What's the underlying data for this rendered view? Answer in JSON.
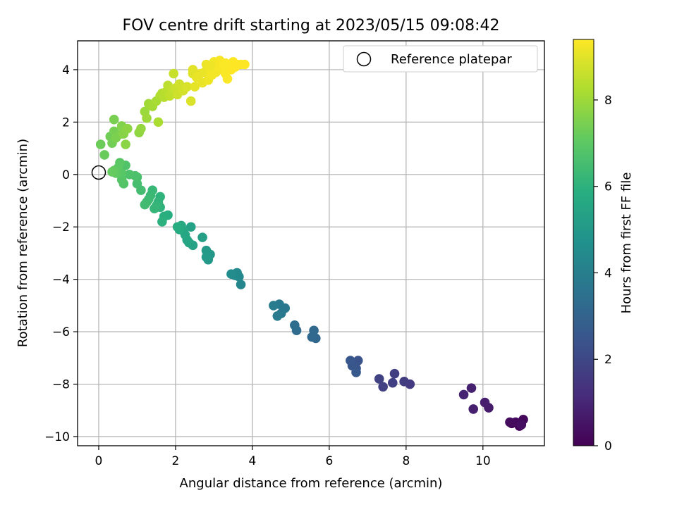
{
  "chart_data": {
    "type": "scatter",
    "title": "FOV centre drift starting at 2023/05/15 09:08:42",
    "xlabel": "Angular distance from reference (arcmin)",
    "ylabel": "Rotation from reference (arcmin)",
    "xlim": [
      -0.55,
      11.6
    ],
    "ylim": [
      -10.35,
      5.1
    ],
    "xticks": [
      0,
      2,
      4,
      6,
      8,
      10
    ],
    "yticks": [
      -10,
      -8,
      -6,
      -4,
      -2,
      0,
      2,
      4
    ],
    "xtick_labels": [
      "0",
      "2",
      "4",
      "6",
      "8",
      "10"
    ],
    "ytick_labels": [
      "−10",
      "−8",
      "−6",
      "−4",
      "−2",
      "0",
      "2",
      "4"
    ],
    "grid": true,
    "legend": {
      "placement": "top-right",
      "entries": [
        {
          "label": "Reference platepar",
          "marker": "open-circle"
        }
      ]
    },
    "reference_point": {
      "x": 0,
      "y": 0
    },
    "colorbar": {
      "label": "Hours from first FF file",
      "colormap": "viridis",
      "range": [
        0,
        9.4
      ],
      "ticks": [
        0,
        2,
        4,
        6,
        8
      ],
      "tick_labels": [
        "0",
        "2",
        "4",
        "6",
        "8"
      ]
    },
    "points": [
      {
        "x": 11.0,
        "y": -9.45,
        "h": 0.0
      },
      {
        "x": 10.95,
        "y": -9.6,
        "h": 0.05
      },
      {
        "x": 10.75,
        "y": -9.5,
        "h": 0.1
      },
      {
        "x": 11.05,
        "y": -9.35,
        "h": 0.15
      },
      {
        "x": 10.9,
        "y": -9.5,
        "h": 0.2
      },
      {
        "x": 10.85,
        "y": -9.45,
        "h": 0.25
      },
      {
        "x": 10.7,
        "y": -9.45,
        "h": 0.3
      },
      {
        "x": 11.0,
        "y": -9.55,
        "h": 0.35
      },
      {
        "x": 10.15,
        "y": -8.9,
        "h": 0.7
      },
      {
        "x": 10.05,
        "y": -8.7,
        "h": 0.75
      },
      {
        "x": 9.75,
        "y": -8.95,
        "h": 0.8
      },
      {
        "x": 9.7,
        "y": -8.15,
        "h": 0.85
      },
      {
        "x": 9.5,
        "y": -8.4,
        "h": 0.9
      },
      {
        "x": 8.1,
        "y": -8.0,
        "h": 1.6
      },
      {
        "x": 7.95,
        "y": -7.9,
        "h": 1.65
      },
      {
        "x": 7.7,
        "y": -7.6,
        "h": 1.7
      },
      {
        "x": 7.65,
        "y": -7.95,
        "h": 1.75
      },
      {
        "x": 7.4,
        "y": -8.1,
        "h": 1.8
      },
      {
        "x": 7.3,
        "y": -7.8,
        "h": 1.85
      },
      {
        "x": 6.75,
        "y": -7.1,
        "h": 2.4
      },
      {
        "x": 6.7,
        "y": -7.4,
        "h": 2.45
      },
      {
        "x": 6.6,
        "y": -7.3,
        "h": 2.5
      },
      {
        "x": 6.55,
        "y": -7.1,
        "h": 2.55
      },
      {
        "x": 6.7,
        "y": -7.55,
        "h": 2.6
      },
      {
        "x": 5.65,
        "y": -6.25,
        "h": 3.1
      },
      {
        "x": 5.6,
        "y": -5.95,
        "h": 3.15
      },
      {
        "x": 5.55,
        "y": -6.2,
        "h": 3.2
      },
      {
        "x": 5.15,
        "y": -5.95,
        "h": 3.3
      },
      {
        "x": 5.1,
        "y": -5.75,
        "h": 3.35
      },
      {
        "x": 4.85,
        "y": -5.1,
        "h": 3.7
      },
      {
        "x": 4.75,
        "y": -5.3,
        "h": 3.75
      },
      {
        "x": 4.7,
        "y": -4.95,
        "h": 3.8
      },
      {
        "x": 4.65,
        "y": -5.4,
        "h": 3.85
      },
      {
        "x": 4.55,
        "y": -5.0,
        "h": 3.9
      },
      {
        "x": 3.7,
        "y": -4.2,
        "h": 4.3
      },
      {
        "x": 3.65,
        "y": -3.9,
        "h": 4.35
      },
      {
        "x": 3.6,
        "y": -3.75,
        "h": 4.4
      },
      {
        "x": 3.55,
        "y": -3.85,
        "h": 4.45
      },
      {
        "x": 3.45,
        "y": -3.8,
        "h": 4.5
      },
      {
        "x": 2.9,
        "y": -3.05,
        "h": 4.95
      },
      {
        "x": 2.85,
        "y": -3.25,
        "h": 5.0
      },
      {
        "x": 2.8,
        "y": -2.9,
        "h": 5.05
      },
      {
        "x": 2.8,
        "y": -3.15,
        "h": 5.1
      },
      {
        "x": 2.7,
        "y": -2.4,
        "h": 5.3
      },
      {
        "x": 2.45,
        "y": -2.7,
        "h": 5.35
      },
      {
        "x": 2.4,
        "y": -2.0,
        "h": 5.4
      },
      {
        "x": 2.35,
        "y": -2.6,
        "h": 5.45
      },
      {
        "x": 2.3,
        "y": -2.5,
        "h": 5.5
      },
      {
        "x": 2.25,
        "y": -2.3,
        "h": 5.55
      },
      {
        "x": 2.2,
        "y": -2.15,
        "h": 5.6
      },
      {
        "x": 2.15,
        "y": -1.95,
        "h": 5.65
      },
      {
        "x": 2.1,
        "y": -2.1,
        "h": 5.7
      },
      {
        "x": 2.05,
        "y": -2.0,
        "h": 5.75
      },
      {
        "x": 1.8,
        "y": -1.55,
        "h": 5.85
      },
      {
        "x": 1.7,
        "y": -1.6,
        "h": 5.9
      },
      {
        "x": 1.65,
        "y": -1.8,
        "h": 5.95
      },
      {
        "x": 1.6,
        "y": -1.25,
        "h": 6.0
      },
      {
        "x": 1.6,
        "y": -0.85,
        "h": 6.05
      },
      {
        "x": 1.55,
        "y": -1.05,
        "h": 6.1
      },
      {
        "x": 1.5,
        "y": -1.2,
        "h": 6.15
      },
      {
        "x": 1.45,
        "y": -1.3,
        "h": 6.2
      },
      {
        "x": 1.4,
        "y": -0.6,
        "h": 6.25
      },
      {
        "x": 1.35,
        "y": -0.8,
        "h": 6.3
      },
      {
        "x": 1.3,
        "y": -0.95,
        "h": 6.35
      },
      {
        "x": 1.25,
        "y": -1.05,
        "h": 6.4
      },
      {
        "x": 1.2,
        "y": -1.15,
        "h": 6.45
      },
      {
        "x": 1.1,
        "y": -0.6,
        "h": 6.5
      },
      {
        "x": 1.0,
        "y": -0.35,
        "h": 6.55
      },
      {
        "x": 1.0,
        "y": -0.1,
        "h": 6.6
      },
      {
        "x": 0.95,
        "y": -0.05,
        "h": 6.65
      },
      {
        "x": 0.8,
        "y": 0.0,
        "h": 6.7
      },
      {
        "x": 0.7,
        "y": 0.35,
        "h": 6.75
      },
      {
        "x": 0.65,
        "y": -0.35,
        "h": 6.8
      },
      {
        "x": 0.6,
        "y": -0.2,
        "h": 6.85
      },
      {
        "x": 0.6,
        "y": 0.05,
        "h": 6.9
      },
      {
        "x": 0.55,
        "y": 0.45,
        "h": 6.95
      },
      {
        "x": 0.5,
        "y": 0.25,
        "h": 7.0
      },
      {
        "x": 0.45,
        "y": 0.05,
        "h": 7.05
      },
      {
        "x": 0.4,
        "y": 0.15,
        "h": 7.1
      },
      {
        "x": 0.35,
        "y": 0.1,
        "h": 7.15
      },
      {
        "x": 0.15,
        "y": 0.75,
        "h": 7.2
      },
      {
        "x": 0.05,
        "y": 1.15,
        "h": 7.25
      },
      {
        "x": 0.3,
        "y": 1.45,
        "h": 7.3
      },
      {
        "x": 0.35,
        "y": 1.2,
        "h": 7.35
      },
      {
        "x": 0.4,
        "y": 1.65,
        "h": 7.4
      },
      {
        "x": 0.4,
        "y": 2.1,
        "h": 7.45
      },
      {
        "x": 0.45,
        "y": 1.4,
        "h": 7.5
      },
      {
        "x": 0.6,
        "y": 1.55,
        "h": 7.55
      },
      {
        "x": 0.6,
        "y": 1.85,
        "h": 7.6
      },
      {
        "x": 0.65,
        "y": 1.55,
        "h": 7.65
      },
      {
        "x": 0.7,
        "y": 1.15,
        "h": 7.7
      },
      {
        "x": 0.75,
        "y": 1.75,
        "h": 7.75
      },
      {
        "x": 1.05,
        "y": 1.6,
        "h": 7.8
      },
      {
        "x": 1.1,
        "y": 1.75,
        "h": 7.85
      },
      {
        "x": 1.2,
        "y": 2.4,
        "h": 7.95
      },
      {
        "x": 1.25,
        "y": 2.15,
        "h": 8.0
      },
      {
        "x": 1.3,
        "y": 2.7,
        "h": 8.05
      },
      {
        "x": 1.4,
        "y": 2.6,
        "h": 8.1
      },
      {
        "x": 1.5,
        "y": 2.8,
        "h": 8.15
      },
      {
        "x": 1.55,
        "y": 2.0,
        "h": 8.2
      },
      {
        "x": 1.6,
        "y": 3.0,
        "h": 8.25
      },
      {
        "x": 1.65,
        "y": 3.1,
        "h": 8.3
      },
      {
        "x": 1.7,
        "y": 2.95,
        "h": 8.35
      },
      {
        "x": 1.75,
        "y": 3.15,
        "h": 8.4
      },
      {
        "x": 1.8,
        "y": 3.4,
        "h": 8.45
      },
      {
        "x": 1.85,
        "y": 3.0,
        "h": 8.5
      },
      {
        "x": 1.9,
        "y": 3.25,
        "h": 8.55
      },
      {
        "x": 1.95,
        "y": 3.85,
        "h": 8.6
      },
      {
        "x": 2.0,
        "y": 3.3,
        "h": 8.65
      },
      {
        "x": 2.05,
        "y": 3.05,
        "h": 8.7
      },
      {
        "x": 2.1,
        "y": 3.45,
        "h": 8.75
      },
      {
        "x": 2.2,
        "y": 3.2,
        "h": 8.8
      },
      {
        "x": 2.3,
        "y": 3.35,
        "h": 8.85
      },
      {
        "x": 2.4,
        "y": 2.8,
        "h": 8.9
      },
      {
        "x": 2.45,
        "y": 3.85,
        "h": 8.95
      },
      {
        "x": 2.45,
        "y": 4.0,
        "h": 9.0
      },
      {
        "x": 2.5,
        "y": 3.35,
        "h": 9.05
      },
      {
        "x": 2.55,
        "y": 3.7,
        "h": 9.1
      },
      {
        "x": 2.7,
        "y": 3.5,
        "h": 9.1
      },
      {
        "x": 2.75,
        "y": 3.9,
        "h": 9.15
      },
      {
        "x": 2.8,
        "y": 4.2,
        "h": 9.15
      },
      {
        "x": 2.85,
        "y": 3.6,
        "h": 9.2
      },
      {
        "x": 2.9,
        "y": 4.0,
        "h": 9.2
      },
      {
        "x": 2.95,
        "y": 3.8,
        "h": 9.25
      },
      {
        "x": 3.0,
        "y": 4.3,
        "h": 9.25
      },
      {
        "x": 3.05,
        "y": 3.9,
        "h": 9.25
      },
      {
        "x": 3.1,
        "y": 4.1,
        "h": 9.3
      },
      {
        "x": 3.15,
        "y": 4.35,
        "h": 9.3
      },
      {
        "x": 3.2,
        "y": 4.0,
        "h": 9.3
      },
      {
        "x": 3.25,
        "y": 4.2,
        "h": 9.35
      },
      {
        "x": 3.3,
        "y": 3.85,
        "h": 9.35
      },
      {
        "x": 3.35,
        "y": 3.65,
        "h": 9.35
      },
      {
        "x": 3.4,
        "y": 4.15,
        "h": 9.35
      },
      {
        "x": 3.45,
        "y": 4.0,
        "h": 9.4
      },
      {
        "x": 3.5,
        "y": 4.3,
        "h": 9.4
      },
      {
        "x": 3.55,
        "y": 4.1,
        "h": 9.4
      },
      {
        "x": 3.6,
        "y": 4.2,
        "h": 9.4
      },
      {
        "x": 3.7,
        "y": 4.2,
        "h": 9.4
      },
      {
        "x": 3.8,
        "y": 4.2,
        "h": 9.4
      },
      {
        "x": 3.3,
        "y": 4.25,
        "h": 9.35
      },
      {
        "x": 2.9,
        "y": 4.15,
        "h": 9.2
      },
      {
        "x": 2.65,
        "y": 3.85,
        "h": 9.1
      }
    ]
  }
}
